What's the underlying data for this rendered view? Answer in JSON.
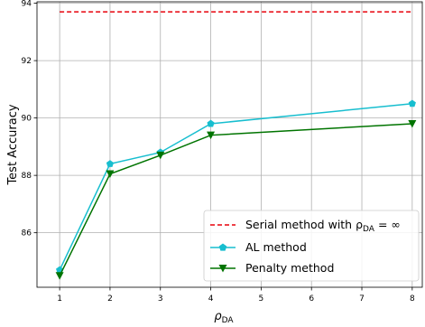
{
  "chart_data": {
    "type": "line",
    "xlabel": "ρ",
    "xlabel_sub": "DA",
    "ylabel": "Test Accuracy",
    "xlim": [
      0.55,
      8.2
    ],
    "ylim": [
      84.1,
      94.05
    ],
    "x_ticks": [
      1,
      2,
      3,
      4,
      5,
      6,
      7,
      8
    ],
    "x_tick_labels": [
      "1",
      "2",
      "3",
      "4",
      "5",
      "6",
      "7",
      "8"
    ],
    "y_ticks": [
      86,
      88,
      90,
      92,
      94
    ],
    "y_tick_labels": [
      "86",
      "88",
      "90",
      "92",
      "94"
    ],
    "grid": true,
    "legend_position": "lower-right",
    "reference_line": {
      "name_prefix": "Serial method with ρ",
      "name_sub": "DA",
      "name_suffix": " = ∞",
      "y": 93.7,
      "color": "#e8000b",
      "style": "dashed"
    },
    "series": [
      {
        "name": "AL method",
        "x": [
          1,
          2,
          3,
          4,
          8
        ],
        "values": [
          84.7,
          88.4,
          88.8,
          89.8,
          90.5
        ],
        "color": "#17becf",
        "marker": "pentagon"
      },
      {
        "name": "Penalty method",
        "x": [
          1,
          2,
          3,
          4,
          8
        ],
        "values": [
          84.5,
          88.05,
          88.7,
          89.4,
          89.8
        ],
        "color": "#007400",
        "marker": "triangle-down"
      }
    ]
  }
}
